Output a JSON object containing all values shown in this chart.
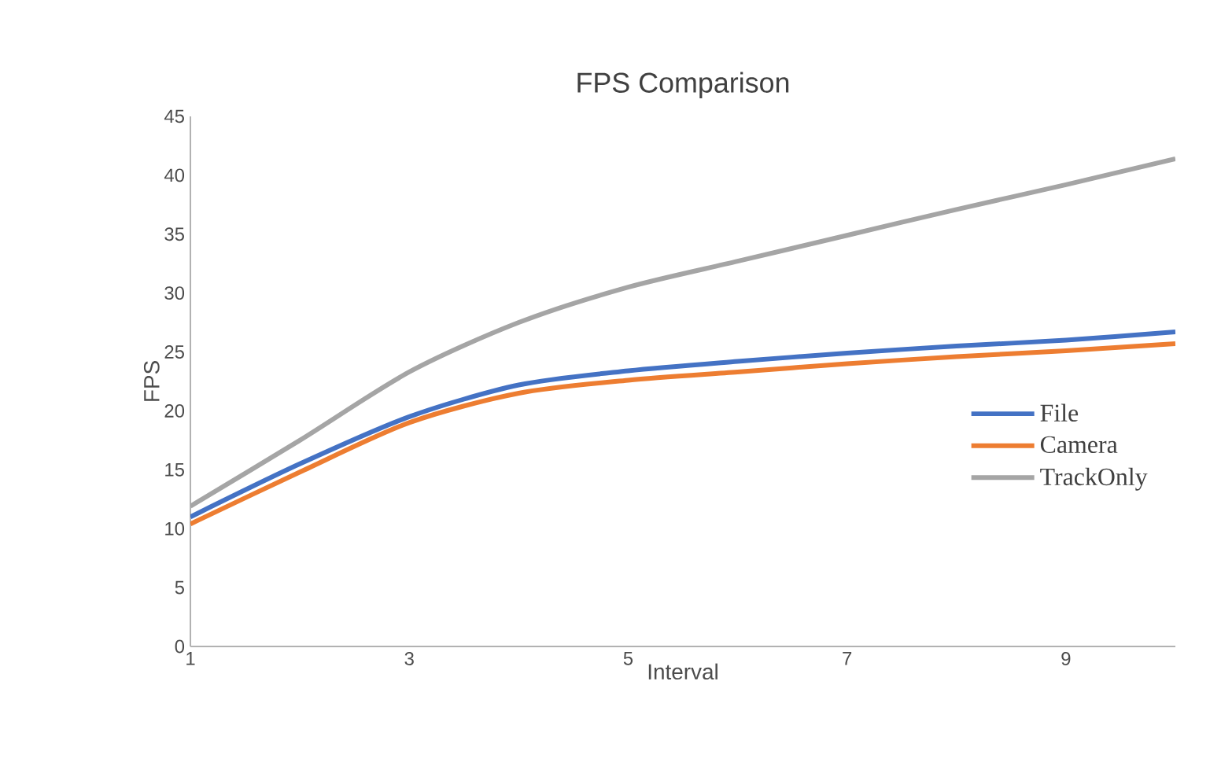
{
  "chart_data": {
    "type": "line",
    "title": "FPS Comparison",
    "xlabel": "Interval",
    "ylabel": "FPS",
    "x": [
      1,
      2,
      3,
      4,
      5,
      6,
      7,
      8,
      9,
      10
    ],
    "series": [
      {
        "name": "File",
        "color": "#4472c4",
        "values": [
          11.0,
          15.5,
          19.5,
          22.2,
          23.4,
          24.2,
          24.9,
          25.5,
          26.0,
          26.7
        ]
      },
      {
        "name": "Camera",
        "color": "#ed7d31",
        "values": [
          10.4,
          14.8,
          19.0,
          21.5,
          22.6,
          23.3,
          24.0,
          24.6,
          25.1,
          25.7
        ]
      },
      {
        "name": "TrackOnly",
        "color": "#a5a5a5",
        "values": [
          11.9,
          17.5,
          23.3,
          27.5,
          30.5,
          32.7,
          34.9,
          37.1,
          39.2,
          41.4
        ]
      }
    ],
    "xlim": [
      1,
      10
    ],
    "xticks": [
      1,
      3,
      5,
      7,
      9
    ],
    "ylim": [
      0,
      45
    ],
    "yticks": [
      0,
      5,
      10,
      15,
      20,
      25,
      30,
      35,
      40,
      45
    ],
    "legend": "right",
    "grid": false,
    "marker": "none",
    "line_style": "solid"
  }
}
